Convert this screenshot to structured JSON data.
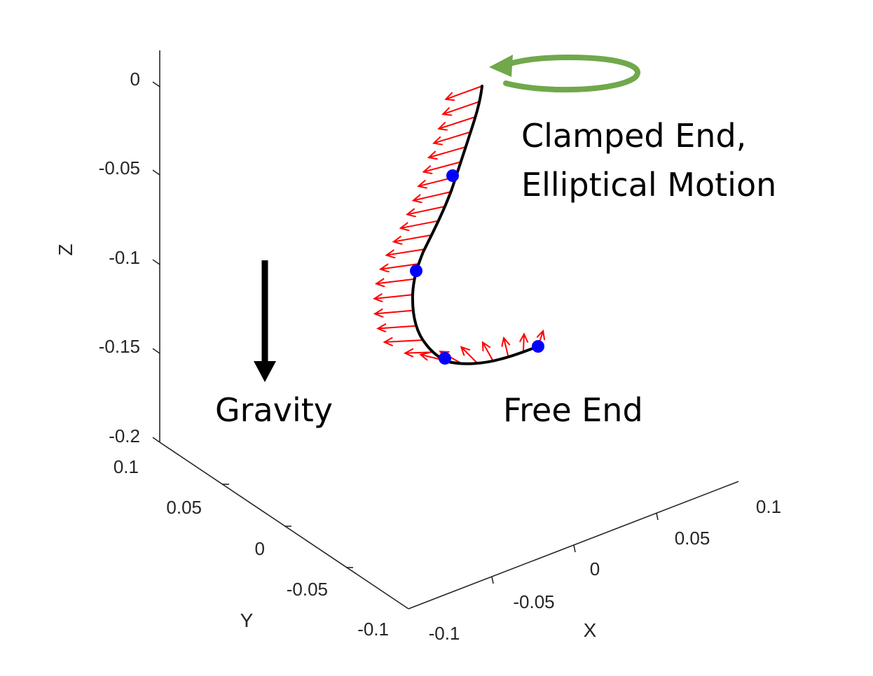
{
  "chart_data": {
    "type": "line3d",
    "title": "",
    "axes": {
      "x": {
        "label": "X",
        "ticks": [
          "-0.1",
          "-0.05",
          "0",
          "0.05",
          "0.1"
        ]
      },
      "y": {
        "label": "Y",
        "ticks": [
          "-0.1",
          "-0.05",
          "0",
          "0.05",
          "0.1"
        ]
      },
      "z": {
        "label": "Z",
        "ticks": [
          "0",
          "-0.05",
          "-0.1",
          "-0.15",
          "-0.2"
        ]
      }
    },
    "grid": false,
    "series": [
      {
        "kind": "curve",
        "color": "#000000",
        "points": [
          [
            0.04,
            0.08,
            0.0
          ],
          [
            0.035,
            0.08,
            -0.025
          ],
          [
            0.025,
            0.08,
            -0.05
          ],
          [
            0.012,
            0.08,
            -0.08
          ],
          [
            0.0,
            0.08,
            -0.105
          ],
          [
            -0.003,
            0.08,
            -0.13
          ],
          [
            0.005,
            0.08,
            -0.15
          ],
          [
            0.03,
            0.08,
            -0.157
          ],
          [
            0.055,
            0.08,
            -0.155
          ],
          [
            0.075,
            0.08,
            -0.148
          ]
        ]
      },
      {
        "kind": "nodes",
        "color": "#0000ff",
        "points": [
          [
            0.025,
            0.08,
            -0.05
          ],
          [
            0.0,
            0.08,
            -0.105
          ],
          [
            0.01,
            0.08,
            -0.153
          ],
          [
            0.07,
            0.08,
            -0.15
          ]
        ]
      },
      {
        "kind": "vectors",
        "color": "#ff0000",
        "count": 26
      }
    ],
    "annotations": [
      {
        "id": "clamped",
        "lines": [
          "Clamped End,",
          "Elliptical Motion"
        ]
      },
      {
        "id": "gravity",
        "text": "Gravity"
      },
      {
        "id": "free",
        "text": "Free End"
      }
    ],
    "colors": {
      "arrow_red": "#ff0000",
      "node_blue": "#0000ff",
      "motion_green": "#70a84b",
      "curve_black": "#000000"
    }
  }
}
